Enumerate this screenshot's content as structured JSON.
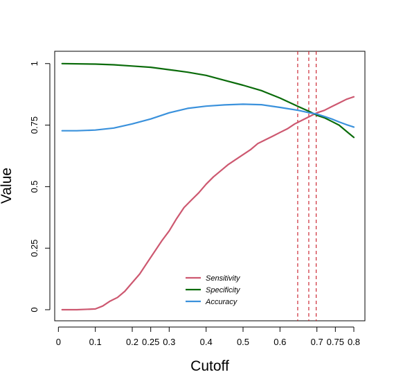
{
  "chart_data": {
    "type": "line",
    "title": "",
    "xlabel": "Cutoff",
    "ylabel": "Value",
    "xlim": [
      -0.01,
      0.83
    ],
    "ylim": [
      -0.045,
      1.05
    ],
    "x_ticks": [
      {
        "value": 0,
        "label": "0"
      },
      {
        "value": 0.1,
        "label": "0.1"
      },
      {
        "value": 0.2,
        "label": "0.2"
      },
      {
        "value": 0.25,
        "label": "0.25"
      },
      {
        "value": 0.3,
        "label": "0.3"
      },
      {
        "value": 0.4,
        "label": "0.4"
      },
      {
        "value": 0.5,
        "label": "0.5"
      },
      {
        "value": 0.6,
        "label": "0.6"
      },
      {
        "value": 0.7,
        "label": "0.7"
      },
      {
        "value": 0.75,
        "label": "0.75"
      },
      {
        "value": 0.8,
        "label": "0.8"
      }
    ],
    "y_ticks": [
      {
        "value": 0,
        "label": "0"
      },
      {
        "value": 0.25,
        "label": "0.25"
      },
      {
        "value": 0.5,
        "label": "0.5"
      },
      {
        "value": 0.75,
        "label": "0.75"
      },
      {
        "value": 1,
        "label": "1"
      }
    ],
    "vlines": [
      0.648,
      0.678,
      0.698
    ],
    "vline_color": "#cc2a36",
    "legend_position": "bottom-center",
    "grid": false,
    "series": [
      {
        "name": "Sensitivity",
        "color": "#cd5870",
        "x": [
          0.01,
          0.05,
          0.1,
          0.12,
          0.14,
          0.16,
          0.18,
          0.2,
          0.22,
          0.24,
          0.26,
          0.28,
          0.3,
          0.32,
          0.34,
          0.36,
          0.38,
          0.4,
          0.42,
          0.44,
          0.46,
          0.48,
          0.5,
          0.52,
          0.54,
          0.56,
          0.58,
          0.6,
          0.62,
          0.64,
          0.66,
          0.68,
          0.7,
          0.72,
          0.74,
          0.76,
          0.78,
          0.8
        ],
        "values": [
          0.0,
          0.0,
          0.003,
          0.015,
          0.035,
          0.05,
          0.075,
          0.11,
          0.145,
          0.19,
          0.235,
          0.28,
          0.32,
          0.37,
          0.415,
          0.445,
          0.475,
          0.51,
          0.54,
          0.565,
          0.59,
          0.61,
          0.63,
          0.65,
          0.675,
          0.69,
          0.705,
          0.72,
          0.735,
          0.755,
          0.77,
          0.785,
          0.8,
          0.81,
          0.825,
          0.84,
          0.855,
          0.865
        ]
      },
      {
        "name": "Specificity",
        "color": "#0a6b0a",
        "x": [
          0.01,
          0.1,
          0.15,
          0.2,
          0.25,
          0.3,
          0.35,
          0.4,
          0.45,
          0.5,
          0.55,
          0.6,
          0.65,
          0.68,
          0.7,
          0.72,
          0.74,
          0.76,
          0.78,
          0.8
        ],
        "values": [
          1.0,
          0.998,
          0.995,
          0.99,
          0.985,
          0.975,
          0.965,
          0.952,
          0.932,
          0.912,
          0.89,
          0.86,
          0.825,
          0.805,
          0.79,
          0.78,
          0.765,
          0.75,
          0.725,
          0.7
        ]
      },
      {
        "name": "Accuracy",
        "color": "#3a91dc",
        "x": [
          0.01,
          0.05,
          0.1,
          0.15,
          0.2,
          0.25,
          0.3,
          0.35,
          0.4,
          0.45,
          0.5,
          0.55,
          0.6,
          0.65,
          0.68,
          0.7,
          0.72,
          0.74,
          0.76,
          0.78,
          0.8
        ],
        "values": [
          0.727,
          0.727,
          0.73,
          0.738,
          0.755,
          0.775,
          0.8,
          0.818,
          0.827,
          0.832,
          0.835,
          0.833,
          0.822,
          0.81,
          0.8,
          0.795,
          0.785,
          0.775,
          0.763,
          0.752,
          0.742
        ]
      }
    ]
  }
}
